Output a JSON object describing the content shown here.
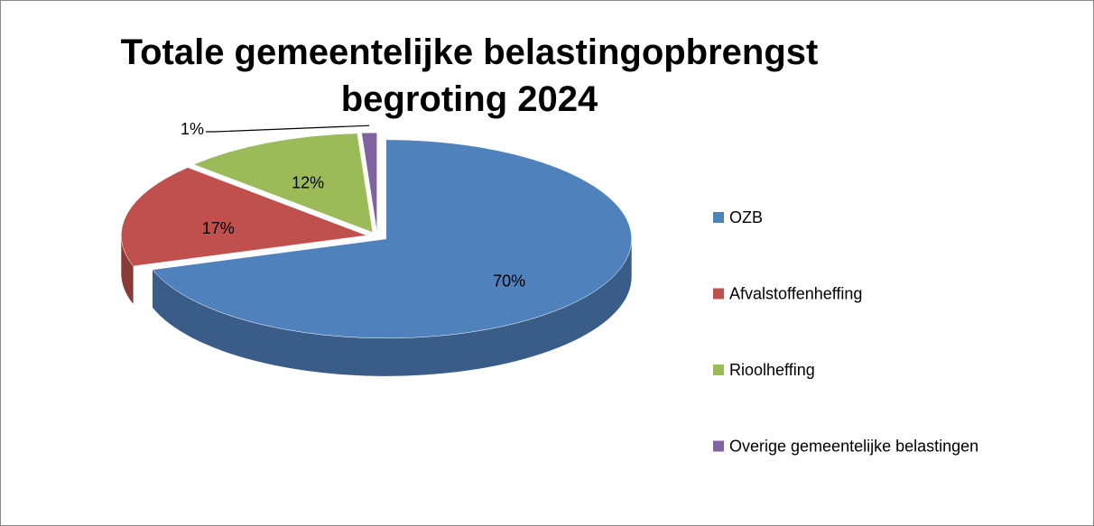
{
  "chart_data": {
    "type": "pie",
    "title": "Totale gemeentelijke belastingopbrengst begroting 2024",
    "categories": [
      "OZB",
      "Afvalstoffenheffing",
      "Rioolheffing",
      "Overige gemeentelijke belastingen"
    ],
    "values": [
      70,
      17,
      12,
      1
    ],
    "value_labels": [
      "70%",
      "17%",
      "12%",
      "1%"
    ],
    "colors": [
      "#4f81bd",
      "#c0504d",
      "#9bbb59",
      "#8064a2"
    ],
    "legend": "right"
  }
}
